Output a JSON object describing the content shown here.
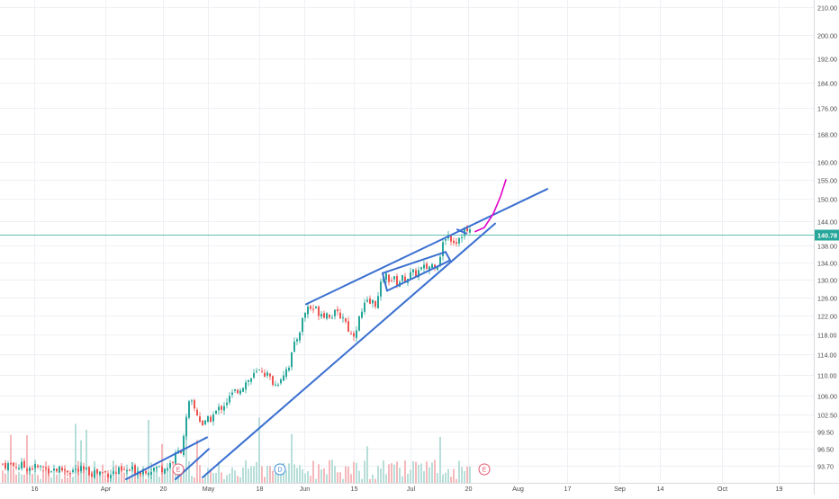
{
  "chart_data": {
    "type": "candlestick",
    "title": "",
    "xlabel": "",
    "ylabel": "",
    "yscale": "log",
    "ylim": [
      91.5,
      212
    ],
    "grid": true,
    "price_ticks": [
      "210.00",
      "200.00",
      "192.00",
      "184.00",
      "176.00",
      "168.00",
      "160.00",
      "155.00",
      "150.00",
      "144.00",
      "138.00",
      "134.00",
      "130.00",
      "126.00",
      "122.00",
      "118.00",
      "114.00",
      "110.00",
      "106.00",
      "102.50",
      "99.50",
      "96.50",
      "93.70"
    ],
    "time_ticks": [
      "16",
      "Apr",
      "20",
      "May",
      "18",
      "Jun",
      "15",
      "Jul",
      "20",
      "Aug",
      "17",
      "Sep",
      "14",
      "Oct",
      "19"
    ],
    "last_price": "140.78",
    "current_price_line": 140.78,
    "price_path": [
      {
        "x": 0,
        "close": 94.0
      },
      {
        "x": 30,
        "close": 93.5
      },
      {
        "x": 120,
        "close": 92.5
      },
      {
        "x": 185,
        "close": 93.5
      },
      {
        "x": 200,
        "close": 96.5
      },
      {
        "x": 210,
        "close": 105.0
      },
      {
        "x": 225,
        "close": 100.5
      },
      {
        "x": 245,
        "close": 104.0
      },
      {
        "x": 265,
        "close": 107.5
      },
      {
        "x": 290,
        "close": 111.0
      },
      {
        "x": 305,
        "close": 108.0
      },
      {
        "x": 320,
        "close": 112.0
      },
      {
        "x": 340,
        "close": 124.0
      },
      {
        "x": 360,
        "close": 122.5
      },
      {
        "x": 380,
        "close": 122.0
      },
      {
        "x": 390,
        "close": 117.5
      },
      {
        "x": 405,
        "close": 124.5
      },
      {
        "x": 418,
        "close": 125.0
      },
      {
        "x": 425,
        "close": 131.0
      },
      {
        "x": 440,
        "close": 129.5
      },
      {
        "x": 460,
        "close": 131.5
      },
      {
        "x": 485,
        "close": 134.0
      },
      {
        "x": 495,
        "close": 141.0
      },
      {
        "x": 505,
        "close": 139.0
      },
      {
        "x": 515,
        "close": 142.0
      },
      {
        "x": 522,
        "close": 140.78
      }
    ],
    "trendlines": [
      {
        "color": "#3a6fd0",
        "p1": {
          "x": 140,
          "price": 91.5
        },
        "p2": {
          "x": 230,
          "price": 98.5
        }
      },
      {
        "color": "#3a6fd0",
        "p1": {
          "x": 195,
          "price": 91.5
        },
        "p2": {
          "x": 232,
          "price": 96.5
        }
      },
      {
        "color": "#3a6fd0",
        "p1": {
          "x": 225,
          "price": 91.8
        },
        "p2": {
          "x": 550,
          "price": 143.5
        }
      },
      {
        "color": "#3a6fd0",
        "p1": {
          "x": 340,
          "price": 124.5
        },
        "p2": {
          "x": 608,
          "price": 152.5
        }
      },
      {
        "color": "#3a6fd0",
        "p1": {
          "x": 425,
          "price": 131.5
        },
        "p2": {
          "x": 495,
          "price": 136.5
        }
      },
      {
        "color": "#3a6fd0",
        "p1": {
          "x": 430,
          "price": 127.5
        },
        "p2": {
          "x": 500,
          "price": 134.5
        }
      },
      {
        "color": "#3a6fd0",
        "p1": {
          "x": 425,
          "price": 131.5
        },
        "p2": {
          "x": 430,
          "price": 127.5
        }
      },
      {
        "color": "#3a6fd0",
        "p1": {
          "x": 495,
          "price": 136.5
        },
        "p2": {
          "x": 500,
          "price": 134.5
        }
      },
      {
        "color": "#3a6fd0",
        "p1": {
          "x": 508,
          "price": 142.0
        },
        "p2": {
          "x": 518,
          "price": 141.0
        }
      }
    ],
    "projection_curve": {
      "color": "#e000c8",
      "points": [
        {
          "x": 528,
          "price": 141.5
        },
        {
          "x": 538,
          "price": 142.5
        },
        {
          "x": 548,
          "price": 146.0
        },
        {
          "x": 556,
          "price": 150.5
        },
        {
          "x": 562,
          "price": 155.0
        }
      ]
    },
    "event_markers": [
      {
        "label": "E",
        "x": 198,
        "color": "#e05a6e"
      },
      {
        "label": "D",
        "x": 311,
        "color": "#3a8ad8"
      },
      {
        "label": "E",
        "x": 538,
        "color": "#e05a6e"
      }
    ],
    "colors": {
      "up": "#26a69a",
      "down": "#ef5350",
      "vol_up": "#b7ded9",
      "vol_down": "#f5b8bb",
      "grid": "#eef0f4",
      "axis_text": "#4a4a4a",
      "price_line": "#5fc0b0",
      "badge": "#26a69a"
    }
  }
}
